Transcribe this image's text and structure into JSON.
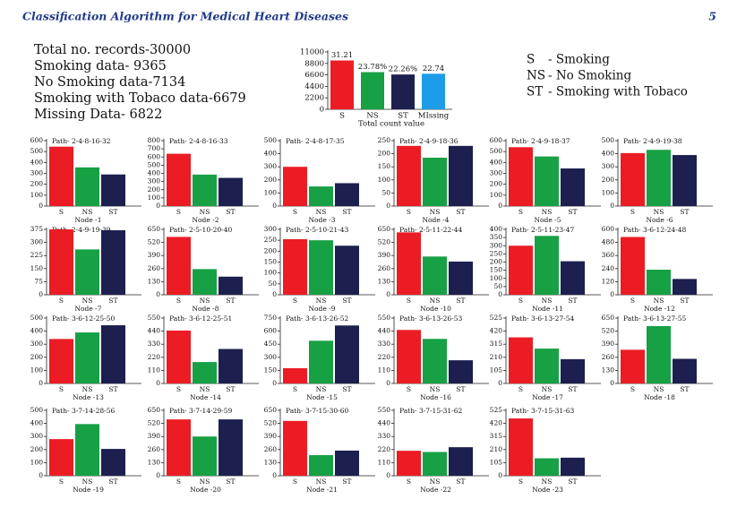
{
  "header": {
    "title": "Classification Algorithm for Medical Heart Diseases",
    "page": "5"
  },
  "stats": [
    "Total no. records-30000",
    "Smoking data- 9365",
    "No Smoking data-7134",
    "Smoking with Tobaco data-6679",
    "Missing Data- 6822"
  ],
  "legend": [
    {
      "code": "S",
      "text": "- Smoking"
    },
    {
      "code": "NS",
      "text": "- No Smoking"
    },
    {
      "code": "ST",
      "text": "- Smoking with Tobaco"
    }
  ],
  "chart_data": [
    {
      "type": "bar",
      "xlabel": "Total count value",
      "categories": [
        "S",
        "NS",
        "ST",
        "MIssing"
      ],
      "values": [
        9365,
        7134,
        6679,
        6822
      ],
      "percent_labels": [
        "31.21",
        "23.78%",
        "22.26%",
        "22.74"
      ],
      "colors": [
        "#ec1c24",
        "#17a044",
        "#1d1f4f",
        "#1e9ce8"
      ],
      "ylim": [
        0,
        11000
      ],
      "yticks": [
        0,
        2200,
        4400,
        6600,
        8800,
        11000
      ]
    },
    {
      "type": "bar",
      "title": "Path- 2-4-8-16-32",
      "xlabel": "Node -1",
      "categories": [
        "S",
        "NS",
        "ST"
      ],
      "values": [
        545,
        355,
        290
      ],
      "colors": [
        "#ec1c24",
        "#17a044",
        "#1d1f4f"
      ],
      "ylim": [
        0,
        600
      ],
      "yticks": [
        0,
        100,
        200,
        300,
        400,
        500,
        600
      ]
    },
    {
      "type": "bar",
      "title": "Path- 2-4-8-16-33",
      "xlabel": "Node -2",
      "categories": [
        "S",
        "NS",
        "ST"
      ],
      "values": [
        640,
        385,
        345
      ],
      "colors": [
        "#ec1c24",
        "#17a044",
        "#1d1f4f"
      ],
      "ylim": [
        0,
        800
      ],
      "yticks": [
        0,
        100,
        200,
        300,
        400,
        500,
        600,
        700,
        800
      ]
    },
    {
      "type": "bar",
      "title": "Path- 2-4-8-17-35",
      "xlabel": "Node -3",
      "categories": [
        "S",
        "NS",
        "ST"
      ],
      "values": [
        300,
        150,
        175
      ],
      "colors": [
        "#ec1c24",
        "#17a044",
        "#1d1f4f"
      ],
      "ylim": [
        0,
        500
      ],
      "yticks": [
        0,
        100,
        200,
        300,
        400,
        500
      ]
    },
    {
      "type": "bar",
      "title": "Path- 2-4-9-18-36",
      "xlabel": "Node -4",
      "categories": [
        "S",
        "NS",
        "ST"
      ],
      "values": [
        230,
        185,
        230
      ],
      "colors": [
        "#ec1c24",
        "#17a044",
        "#1d1f4f"
      ],
      "ylim": [
        0,
        250
      ],
      "yticks": [
        0,
        50,
        100,
        150,
        200,
        250
      ]
    },
    {
      "type": "bar",
      "title": "Path- 2-4-9-18-37",
      "xlabel": "Node -5",
      "categories": [
        "S",
        "NS",
        "ST"
      ],
      "values": [
        540,
        455,
        345
      ],
      "colors": [
        "#ec1c24",
        "#17a044",
        "#1d1f4f"
      ],
      "ylim": [
        0,
        600
      ],
      "yticks": [
        0,
        100,
        200,
        300,
        400,
        500,
        600
      ]
    },
    {
      "type": "bar",
      "title": "Path- 2-4-9-19-38",
      "xlabel": "Node -6",
      "categories": [
        "S",
        "NS",
        "ST"
      ],
      "values": [
        405,
        430,
        390
      ],
      "colors": [
        "#ec1c24",
        "#17a044",
        "#1d1f4f"
      ],
      "ylim": [
        0,
        500
      ],
      "yticks": [
        0,
        100,
        200,
        300,
        400,
        500
      ]
    },
    {
      "type": "bar",
      "title": "Path- 2-4-9-19-39",
      "xlabel": "Node -7",
      "categories": [
        "S",
        "NS",
        "ST"
      ],
      "values": [
        375,
        260,
        370
      ],
      "colors": [
        "#ec1c24",
        "#17a044",
        "#1d1f4f"
      ],
      "ylim": [
        0,
        375
      ],
      "yticks": [
        0,
        75,
        150,
        225,
        300,
        375
      ]
    },
    {
      "type": "bar",
      "title": "Path- 2-5-10-20-40",
      "xlabel": "Node -8",
      "categories": [
        "S",
        "NS",
        "ST"
      ],
      "values": [
        575,
        255,
        180
      ],
      "colors": [
        "#ec1c24",
        "#17a044",
        "#1d1f4f"
      ],
      "ylim": [
        0,
        650
      ],
      "yticks": [
        0,
        130,
        260,
        390,
        520,
        650
      ]
    },
    {
      "type": "bar",
      "title": "Path- 2-5-10-21-43",
      "xlabel": "Node -9",
      "categories": [
        "S",
        "NS",
        "ST"
      ],
      "values": [
        255,
        250,
        225
      ],
      "colors": [
        "#ec1c24",
        "#17a044",
        "#1d1f4f"
      ],
      "ylim": [
        0,
        300
      ],
      "yticks": [
        0,
        50,
        100,
        150,
        200,
        250,
        300
      ]
    },
    {
      "type": "bar",
      "title": "Path- 2-5-11-22-44",
      "xlabel": "Node -10",
      "categories": [
        "S",
        "NS",
        "ST"
      ],
      "values": [
        620,
        380,
        330
      ],
      "colors": [
        "#ec1c24",
        "#17a044",
        "#1d1f4f"
      ],
      "ylim": [
        0,
        650
      ],
      "yticks": [
        0,
        130,
        260,
        390,
        520,
        650
      ]
    },
    {
      "type": "bar",
      "title": "Path- 2-5-11-23-47",
      "xlabel": "Node -11",
      "categories": [
        "S",
        "NS",
        "ST"
      ],
      "values": [
        300,
        360,
        205
      ],
      "colors": [
        "#ec1c24",
        "#17a044",
        "#1d1f4f"
      ],
      "ylim": [
        0,
        400
      ],
      "yticks": [
        0,
        50,
        100,
        150,
        200,
        250,
        300,
        350,
        400
      ]
    },
    {
      "type": "bar",
      "title": "Path- 3-6-12-24-48",
      "xlabel": "Node -12",
      "categories": [
        "S",
        "NS",
        "ST"
      ],
      "values": [
        530,
        230,
        145
      ],
      "colors": [
        "#ec1c24",
        "#17a044",
        "#1d1f4f"
      ],
      "ylim": [
        0,
        600
      ],
      "yticks": [
        0,
        120,
        240,
        360,
        480,
        600
      ]
    },
    {
      "type": "bar",
      "title": "Path- 3-6-12-25-50",
      "xlabel": "Node -13",
      "categories": [
        "S",
        "NS",
        "ST"
      ],
      "values": [
        340,
        390,
        445
      ],
      "colors": [
        "#ec1c24",
        "#17a044",
        "#1d1f4f"
      ],
      "ylim": [
        0,
        500
      ],
      "yticks": [
        0,
        100,
        200,
        300,
        400,
        500
      ]
    },
    {
      "type": "bar",
      "title": "Path- 3-6-12-25-51",
      "xlabel": "Node -14",
      "categories": [
        "S",
        "NS",
        "ST"
      ],
      "values": [
        445,
        180,
        290
      ],
      "colors": [
        "#ec1c24",
        "#17a044",
        "#1d1f4f"
      ],
      "ylim": [
        0,
        550
      ],
      "yticks": [
        0,
        110,
        220,
        330,
        440,
        550
      ]
    },
    {
      "type": "bar",
      "title": "Path- 3-6-13-26-52",
      "xlabel": "Node -15",
      "categories": [
        "S",
        "NS",
        "ST"
      ],
      "values": [
        175,
        490,
        665
      ],
      "colors": [
        "#ec1c24",
        "#17a044",
        "#1d1f4f"
      ],
      "ylim": [
        0,
        750
      ],
      "yticks": [
        0,
        150,
        300,
        450,
        600,
        750
      ]
    },
    {
      "type": "bar",
      "title": "Path- 3-6-13-26-53",
      "xlabel": "Node -16",
      "categories": [
        "S",
        "NS",
        "ST"
      ],
      "values": [
        450,
        375,
        195
      ],
      "colors": [
        "#ec1c24",
        "#17a044",
        "#1d1f4f"
      ],
      "ylim": [
        0,
        550
      ],
      "yticks": [
        0,
        110,
        220,
        330,
        440,
        550
      ]
    },
    {
      "type": "bar",
      "title": "Path- 3-6-13-27-54",
      "xlabel": "Node -17",
      "categories": [
        "S",
        "NS",
        "ST"
      ],
      "values": [
        370,
        280,
        195
      ],
      "colors": [
        "#ec1c24",
        "#17a044",
        "#1d1f4f"
      ],
      "ylim": [
        0,
        525
      ],
      "yticks": [
        0,
        105,
        210,
        315,
        420,
        525
      ]
    },
    {
      "type": "bar",
      "title": "Path- 3-6-13-27-55",
      "xlabel": "Node -18",
      "categories": [
        "S",
        "NS",
        "ST"
      ],
      "values": [
        335,
        570,
        245
      ],
      "colors": [
        "#ec1c24",
        "#17a044",
        "#1d1f4f"
      ],
      "ylim": [
        0,
        650
      ],
      "yticks": [
        0,
        130,
        260,
        390,
        520,
        650
      ]
    },
    {
      "type": "bar",
      "title": "Path- 3-7-14-28-56",
      "xlabel": "Node -19",
      "categories": [
        "S",
        "NS",
        "ST"
      ],
      "values": [
        280,
        395,
        205
      ],
      "colors": [
        "#ec1c24",
        "#17a044",
        "#1d1f4f"
      ],
      "ylim": [
        0,
        500
      ],
      "yticks": [
        0,
        100,
        200,
        300,
        400,
        500
      ]
    },
    {
      "type": "bar",
      "title": "Path- 3-7-14-29-59",
      "xlabel": "Node -20",
      "categories": [
        "S",
        "NS",
        "ST"
      ],
      "values": [
        560,
        390,
        560
      ],
      "colors": [
        "#ec1c24",
        "#17a044",
        "#1d1f4f"
      ],
      "ylim": [
        0,
        650
      ],
      "yticks": [
        0,
        130,
        260,
        390,
        520,
        650
      ]
    },
    {
      "type": "bar",
      "title": "Path- 3-7-15-30-60",
      "xlabel": "Node -21",
      "categories": [
        "S",
        "NS",
        "ST"
      ],
      "values": [
        545,
        205,
        250
      ],
      "colors": [
        "#ec1c24",
        "#17a044",
        "#1d1f4f"
      ],
      "ylim": [
        0,
        650
      ],
      "yticks": [
        0,
        130,
        260,
        390,
        520,
        650
      ]
    },
    {
      "type": "bar",
      "title": "Path- 3-7-15-31-62",
      "xlabel": "Node -22",
      "categories": [
        "S",
        "NS",
        "ST"
      ],
      "values": [
        210,
        200,
        240
      ],
      "colors": [
        "#ec1c24",
        "#17a044",
        "#1d1f4f"
      ],
      "ylim": [
        0,
        550
      ],
      "yticks": [
        0,
        110,
        220,
        330,
        440,
        550
      ]
    },
    {
      "type": "bar",
      "title": "Path- 3-7-15-31-63",
      "xlabel": "Node -23",
      "categories": [
        "S",
        "NS",
        "ST"
      ],
      "values": [
        460,
        140,
        145
      ],
      "colors": [
        "#ec1c24",
        "#17a044",
        "#1d1f4f"
      ],
      "ylim": [
        0,
        525
      ],
      "yticks": [
        0,
        105,
        210,
        315,
        420,
        525
      ]
    }
  ]
}
